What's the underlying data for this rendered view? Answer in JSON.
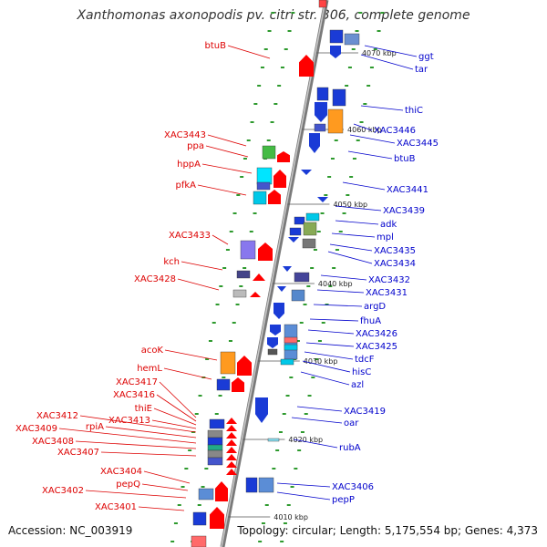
{
  "title": "Xanthomonas axonopodis pv. citri str. 306, complete genome",
  "footer": {
    "accession": "Accession: NC_003919",
    "stats": "Topology: circular; Length: 5,175,554 bp; Genes: 4,373"
  },
  "colors": {
    "left_label": "#dd0000",
    "right_label": "#0000cc",
    "backbone": "#999999"
  },
  "scale_ticks": [
    "4070 kbp",
    "4060 kbp",
    "4050 kbp",
    "4040 kbp",
    "4030 kbp",
    "4020 kbp",
    "4010 kbp"
  ],
  "left_labels": [
    "btuB",
    "XAC3443",
    "ppa",
    "hppA",
    "pfkA",
    "XAC3433",
    "kch",
    "XAC3428",
    "acoK",
    "hemL",
    "XAC3417",
    "XAC3416",
    "thiE",
    "XAC3413",
    "XAC3412",
    "rpiA",
    "XAC3409",
    "XAC3408",
    "XAC3407",
    "XAC3404",
    "pepQ",
    "XAC3402",
    "XAC3401"
  ],
  "right_labels": [
    "ggt",
    "tar",
    "thiC",
    "XAC3446",
    "XAC3445",
    "btuB",
    "XAC3441",
    "XAC3439",
    "adk",
    "mpl",
    "XAC3435",
    "XAC3434",
    "XAC3432",
    "XAC3431",
    "argD",
    "fhuA",
    "XAC3426",
    "XAC3425",
    "tdcF",
    "hisC",
    "azl",
    "XAC3419",
    "oar",
    "rubA",
    "XAC3406",
    "pepP"
  ]
}
